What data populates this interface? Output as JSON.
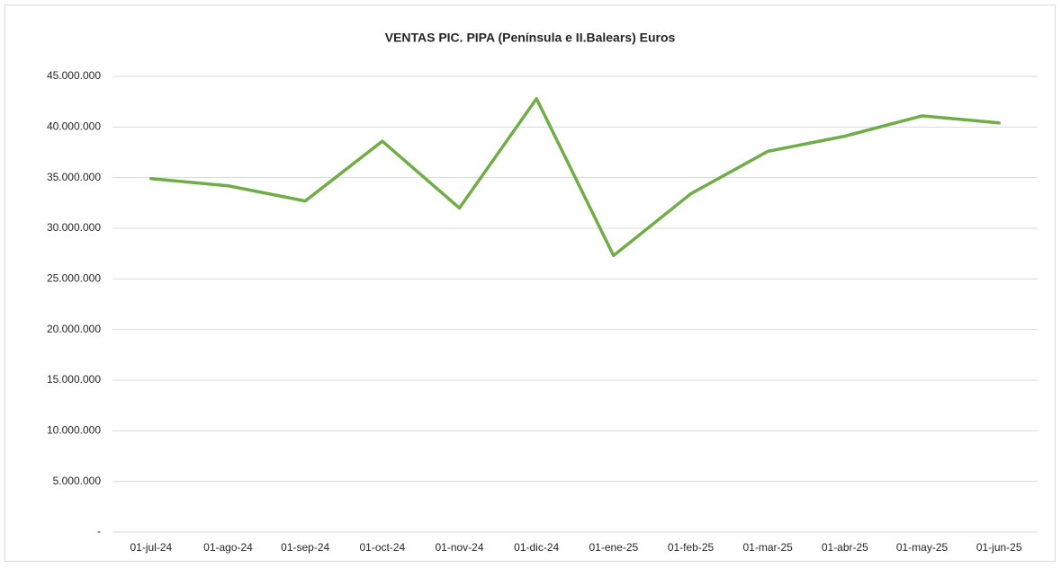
{
  "chart_data": {
    "type": "line",
    "title": "VENTAS PIC. PIPA  (Península e II.Balears) Euros",
    "categories": [
      "01-jul-24",
      "01-ago-24",
      "01-sep-24",
      "01-oct-24",
      "01-nov-24",
      "01-dic-24",
      "01-ene-25",
      "01-feb-25",
      "01-mar-25",
      "01-abr-25",
      "01-may-25",
      "01-jun-25"
    ],
    "series": [
      {
        "name": "Ventas",
        "color": "#70ad47",
        "values": [
          34900000,
          34200000,
          32700000,
          38600000,
          32000000,
          42800000,
          27300000,
          33400000,
          37600000,
          39100000,
          41100000,
          40400000
        ]
      }
    ],
    "ylim": [
      0,
      45000000
    ],
    "yticks": [
      {
        "value": 0,
        "label": "-"
      },
      {
        "value": 5000000,
        "label": "5.000.000"
      },
      {
        "value": 10000000,
        "label": "10.000.000"
      },
      {
        "value": 15000000,
        "label": "15.000.000"
      },
      {
        "value": 20000000,
        "label": "20.000.000"
      },
      {
        "value": 25000000,
        "label": "25.000.000"
      },
      {
        "value": 30000000,
        "label": "30.000.000"
      },
      {
        "value": 35000000,
        "label": "35.000.000"
      },
      {
        "value": 40000000,
        "label": "40.000.000"
      },
      {
        "value": 45000000,
        "label": "45.000.000"
      }
    ],
    "grid": true
  }
}
